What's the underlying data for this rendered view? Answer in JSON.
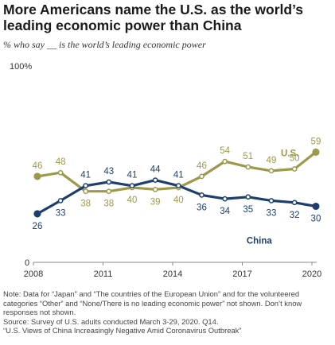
{
  "title": "More Americans name the U.S. as the world’s leading economic power than China",
  "subtitle": "% who say __ is the world’s leading economic power",
  "notes": [
    "Note: Data for “Japan” and “The countries of the European Union” and for the volunteered categories “Other” and “None/There is no leading economic power” not shown. Don’t know responses not shown.",
    "Source: Survey of U.S. adults conducted March 3-29, 2020. Q14.",
    "“U.S. Views of China Increasingly Negative Amid Coronavirus Outbreak”"
  ],
  "chart_data": {
    "type": "line",
    "y_top_label": "100%",
    "y_zero_label": "0",
    "x_ticks": [
      2008,
      2011,
      2014,
      2017,
      2020
    ],
    "xlim": [
      2008,
      2020
    ],
    "ylim": [
      0,
      100
    ],
    "grid": false,
    "series": [
      {
        "name": "U.S.",
        "color": "#9c9a4a",
        "points": [
          {
            "x": 2008.17,
            "y": 46
          },
          {
            "x": 2009.17,
            "y": 48
          },
          {
            "x": 2010.25,
            "y": 38
          },
          {
            "x": 2011.25,
            "y": 38
          },
          {
            "x": 2012.25,
            "y": 40
          },
          {
            "x": 2013.25,
            "y": 39
          },
          {
            "x": 2014.25,
            "y": 40
          },
          {
            "x": 2015.25,
            "y": 46
          },
          {
            "x": 2016.25,
            "y": 54
          },
          {
            "x": 2017.25,
            "y": 51
          },
          {
            "x": 2018.25,
            "y": 49
          },
          {
            "x": 2019.25,
            "y": 50
          },
          {
            "x": 2020.17,
            "y": 59
          }
        ]
      },
      {
        "name": "China",
        "color": "#1e3f6e",
        "points": [
          {
            "x": 2008.17,
            "y": 26
          },
          {
            "x": 2009.17,
            "y": 33
          },
          {
            "x": 2010.25,
            "y": 41
          },
          {
            "x": 2011.25,
            "y": 43
          },
          {
            "x": 2012.25,
            "y": 41
          },
          {
            "x": 2013.25,
            "y": 44
          },
          {
            "x": 2014.25,
            "y": 41
          },
          {
            "x": 2015.25,
            "y": 36
          },
          {
            "x": 2016.25,
            "y": 34
          },
          {
            "x": 2017.25,
            "y": 35
          },
          {
            "x": 2018.25,
            "y": 33
          },
          {
            "x": 2019.25,
            "y": 32
          },
          {
            "x": 2020.17,
            "y": 30
          }
        ]
      }
    ]
  }
}
